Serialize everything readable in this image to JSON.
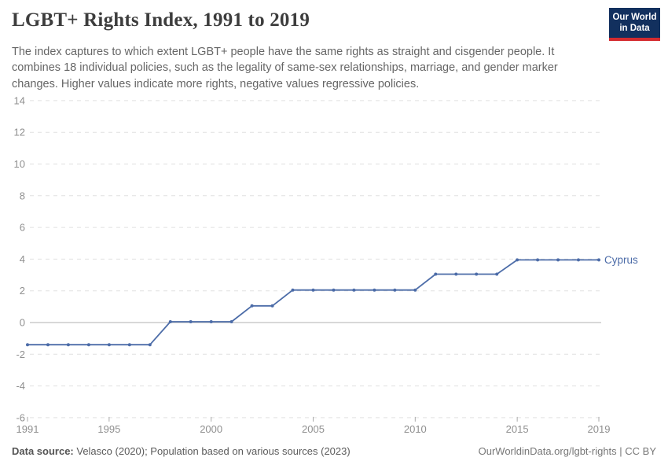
{
  "header": {
    "title": "LGBT+ Rights Index, 1991 to 2019",
    "subtitle": "The index captures to which extent LGBT+ people have the same rights as straight and cisgender people. It combines 18 individual policies, such as the legality of same-sex relationships, marriage, and gender marker changes. Higher values indicate more rights, negative values regressive policies.",
    "logo": {
      "line1": "Our World",
      "line2": "in Data"
    }
  },
  "chart_data": {
    "type": "line",
    "title": "LGBT+ Rights Index, 1991 to 2019",
    "xlabel": "",
    "ylabel": "",
    "x": [
      1991,
      1992,
      1993,
      1994,
      1995,
      1996,
      1997,
      1998,
      1999,
      2000,
      2001,
      2002,
      2003,
      2004,
      2005,
      2006,
      2007,
      2008,
      2009,
      2010,
      2011,
      2012,
      2013,
      2014,
      2015,
      2016,
      2017,
      2018,
      2019
    ],
    "series": [
      {
        "name": "Cyprus",
        "color": "#4C6CA8",
        "values": [
          -1.4,
          -1.4,
          -1.4,
          -1.4,
          -1.4,
          -1.4,
          -1.4,
          0.05,
          0.05,
          0.05,
          0.05,
          1.05,
          1.05,
          2.05,
          2.05,
          2.05,
          2.05,
          2.05,
          2.05,
          2.05,
          3.05,
          3.05,
          3.05,
          3.05,
          3.95,
          3.95,
          3.95,
          3.95,
          3.95
        ]
      }
    ],
    "xlim": [
      1991,
      2019
    ],
    "ylim": [
      -6,
      14
    ],
    "xticks": [
      1991,
      1995,
      2000,
      2005,
      2010,
      2015,
      2019
    ],
    "yticks": [
      -6,
      -4,
      -2,
      0,
      2,
      4,
      6,
      8,
      10,
      12,
      14
    ],
    "grid": "horizontal-dashed",
    "zero_line": true,
    "legend_position": "end-of-line",
    "end_label": "Cyprus"
  },
  "footer": {
    "source_label": "Data source:",
    "source_text": " Velasco (2020); Population based on various sources (2023)",
    "credit": "OurWorldinData.org/lgbt-rights | CC BY"
  },
  "colors": {
    "line": "#4C6CA8",
    "axis_text": "#8f8f8f",
    "grid": "#e0e0e0",
    "zero_line": "#b0b0b0",
    "tick": "#aaaaaa",
    "title": "#3d3d3d",
    "subtitle": "#666666",
    "logo_bg": "#12305e",
    "logo_stripe": "#d42b2f"
  }
}
